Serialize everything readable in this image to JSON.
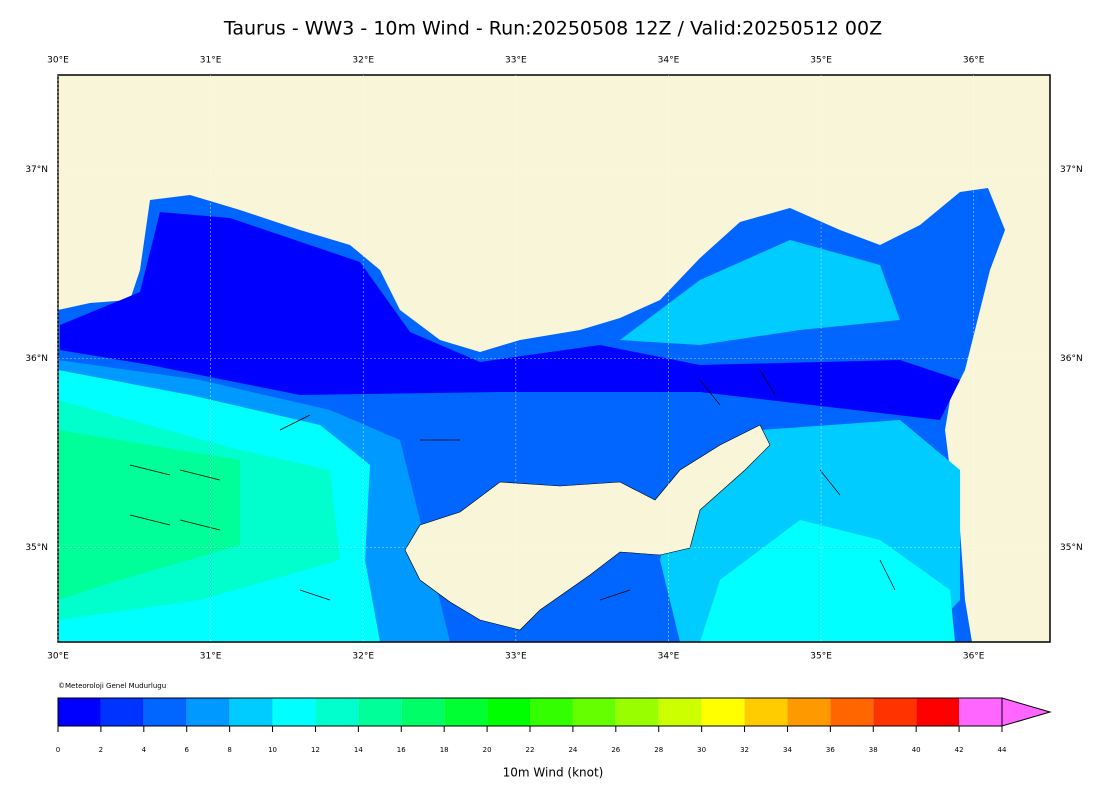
{
  "title": "Taurus - WW3 - 10m Wind - Run:20250508 12Z / Valid:20250512 00Z",
  "map": {
    "lonlim": [
      30,
      36.5
    ],
    "latlim": [
      34.5,
      37.5
    ],
    "lon_ticks": [
      {
        "value": 30,
        "label": "30°E"
      },
      {
        "value": 31,
        "label": "31°E"
      },
      {
        "value": 32,
        "label": "32°E"
      },
      {
        "value": 33,
        "label": "33°E"
      },
      {
        "value": 34,
        "label": "34°E"
      },
      {
        "value": 35,
        "label": "35°E"
      },
      {
        "value": 36,
        "label": "36°E"
      }
    ],
    "lat_ticks": [
      {
        "value": 35,
        "label": "35°N"
      },
      {
        "value": 36,
        "label": "36°N"
      },
      {
        "value": 37,
        "label": "37°N"
      }
    ],
    "grid": true
  },
  "credit": "©Meteoroloji Genel Mudurlugu",
  "colorbar": {
    "label": "10m Wind (knot)",
    "ticks": [
      0,
      2,
      4,
      6,
      8,
      10,
      12,
      14,
      16,
      18,
      20,
      22,
      24,
      26,
      28,
      30,
      32,
      34,
      36,
      38,
      40,
      42,
      44
    ],
    "colors": [
      "#0000ff",
      "#0033ff",
      "#0066ff",
      "#0099ff",
      "#00ccff",
      "#00ffff",
      "#00ffcc",
      "#00ff99",
      "#00ff66",
      "#00ff33",
      "#00ff00",
      "#33ff00",
      "#66ff00",
      "#99ff00",
      "#ccff00",
      "#ffff00",
      "#ffcc00",
      "#ff9900",
      "#ff6600",
      "#ff3300",
      "#ff0000",
      "#ff66ff"
    ],
    "extend_color": "#ff66ff"
  }
}
